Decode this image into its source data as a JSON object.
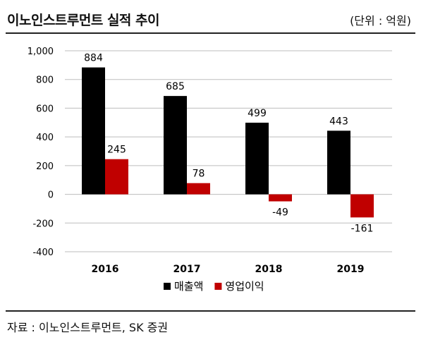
{
  "header": {
    "title": "이노인스트루먼트 실적 추이",
    "unit": "(단위 : 억원)"
  },
  "footer": {
    "source": "자료 : 이노인스트루먼트, SK 증권"
  },
  "chart_data": {
    "type": "bar",
    "categories": [
      "2016",
      "2017",
      "2018",
      "2019"
    ],
    "series": [
      {
        "name": "매출액",
        "values": [
          884,
          685,
          499,
          443
        ],
        "color": "#000000"
      },
      {
        "name": "영업이익",
        "values": [
          245,
          78,
          -49,
          -161
        ],
        "color": "#c00000"
      }
    ],
    "ylim": [
      -400,
      1000
    ],
    "yticks": [
      1000,
      800,
      600,
      400,
      200,
      0,
      -200,
      -400
    ],
    "ytick_labels": [
      "1,000",
      "800",
      "600",
      "400",
      "200",
      "0",
      "-200",
      "-400"
    ],
    "grid": true,
    "legend_position": "bottom-center"
  }
}
